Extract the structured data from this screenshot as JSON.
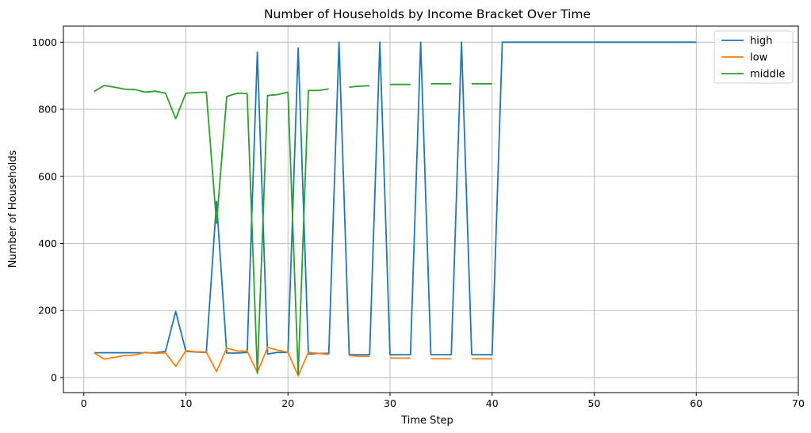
{
  "chart_data": {
    "type": "line",
    "title": "Number of Households by Income Bracket Over Time",
    "xlabel": "Time Step",
    "ylabel": "Number of Households",
    "xlim": [
      -2,
      70
    ],
    "ylim": [
      -45,
      1048
    ],
    "xticks": [
      0,
      10,
      20,
      30,
      40,
      50,
      60,
      70
    ],
    "yticks": [
      0,
      200,
      400,
      600,
      800,
      1000
    ],
    "grid": true,
    "legend_position": "top-right",
    "series": [
      {
        "name": "high",
        "color": "#1f77b4",
        "x": [
          1,
          2,
          3,
          4,
          5,
          6,
          7,
          8,
          9,
          10,
          11,
          12,
          13,
          14,
          15,
          16,
          17,
          18,
          19,
          20,
          21,
          22,
          23,
          24,
          25,
          26,
          27,
          28,
          29,
          30,
          31,
          32,
          33,
          34,
          35,
          36,
          37,
          38,
          39,
          40,
          41,
          42,
          43,
          44,
          45,
          46,
          47,
          48,
          49,
          50,
          51,
          52,
          53,
          54,
          55,
          56,
          57,
          58,
          59,
          60
        ],
        "y": [
          74,
          74,
          74,
          74,
          74,
          74,
          74,
          78,
          197,
          78,
          76,
          75,
          525,
          73,
          73,
          75,
          970,
          70,
          75,
          75,
          983,
          70,
          72,
          72,
          1000,
          68,
          68,
          68,
          1000,
          68,
          68,
          68,
          1000,
          68,
          68,
          68,
          1000,
          68,
          68,
          68,
          1000,
          1000,
          1000,
          1000,
          1000,
          1000,
          1000,
          1000,
          1000,
          1000,
          1000,
          1000,
          1000,
          1000,
          1000,
          1000,
          1000,
          1000,
          1000,
          1000
        ]
      },
      {
        "name": "low",
        "color": "#ff7f0e",
        "x": [
          1,
          2,
          3,
          4,
          5,
          6,
          7,
          8,
          9,
          10,
          11,
          12,
          13,
          14,
          15,
          16,
          17,
          18,
          19,
          20,
          21,
          22,
          23,
          24,
          25,
          26,
          27,
          28,
          29,
          30,
          31,
          32,
          33,
          34,
          35,
          36,
          37,
          38,
          39,
          40
        ],
        "y": [
          74,
          55,
          60,
          66,
          67,
          75,
          72,
          74,
          33,
          80,
          77,
          76,
          18,
          88,
          79,
          79,
          15,
          90,
          82,
          75,
          5,
          75,
          72,
          69,
          null,
          66,
          63,
          63,
          null,
          58,
          58,
          58,
          null,
          56,
          56,
          56,
          null,
          56,
          56,
          56
        ]
      },
      {
        "name": "middle",
        "color": "#2ca02c",
        "x": [
          1,
          2,
          3,
          4,
          5,
          6,
          7,
          8,
          9,
          10,
          11,
          12,
          13,
          14,
          15,
          16,
          17,
          18,
          19,
          20,
          21,
          22,
          23,
          24,
          25,
          26,
          27,
          28,
          29,
          30,
          31,
          32,
          33,
          34,
          35,
          36,
          37,
          38,
          39,
          40
        ],
        "y": [
          853,
          871,
          866,
          860,
          859,
          851,
          854,
          848,
          772,
          848,
          850,
          851,
          460,
          838,
          848,
          847,
          12,
          841,
          844,
          851,
          10,
          856,
          856,
          861,
          null,
          866,
          869,
          870,
          null,
          874,
          874,
          874,
          null,
          876,
          876,
          876,
          null,
          876,
          876,
          876
        ]
      }
    ]
  }
}
